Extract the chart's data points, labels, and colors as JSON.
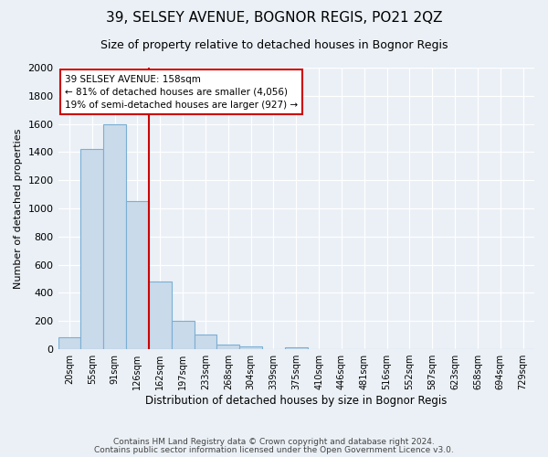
{
  "title": "39, SELSEY AVENUE, BOGNOR REGIS, PO21 2QZ",
  "subtitle": "Size of property relative to detached houses in Bognor Regis",
  "xlabel": "Distribution of detached houses by size in Bognor Regis",
  "ylabel": "Number of detached properties",
  "bar_labels": [
    "20sqm",
    "55sqm",
    "91sqm",
    "126sqm",
    "162sqm",
    "197sqm",
    "233sqm",
    "268sqm",
    "304sqm",
    "339sqm",
    "375sqm",
    "410sqm",
    "446sqm",
    "481sqm",
    "516sqm",
    "552sqm",
    "587sqm",
    "623sqm",
    "658sqm",
    "694sqm",
    "729sqm"
  ],
  "bar_values": [
    85,
    1420,
    1600,
    1055,
    480,
    200,
    105,
    35,
    20,
    0,
    15,
    0,
    0,
    0,
    0,
    0,
    0,
    0,
    0,
    0,
    0
  ],
  "bar_color": "#c9daea",
  "bar_edge_color": "#7bafd4",
  "property_line_x": 4,
  "property_line_label": "39 SELSEY AVENUE: 158sqm",
  "annotation_line1": "← 81% of detached houses are smaller (4,056)",
  "annotation_line2": "19% of semi-detached houses are larger (927) →",
  "annotation_box_color": "#ffffff",
  "annotation_box_edge": "#cc0000",
  "red_line_color": "#cc0000",
  "ylim": [
    0,
    2000
  ],
  "yticks": [
    0,
    200,
    400,
    600,
    800,
    1000,
    1200,
    1400,
    1600,
    1800,
    2000
  ],
  "bg_color": "#eaf0f6",
  "grid_color": "#ffffff",
  "footer1": "Contains HM Land Registry data © Crown copyright and database right 2024.",
  "footer2": "Contains public sector information licensed under the Open Government Licence v3.0."
}
